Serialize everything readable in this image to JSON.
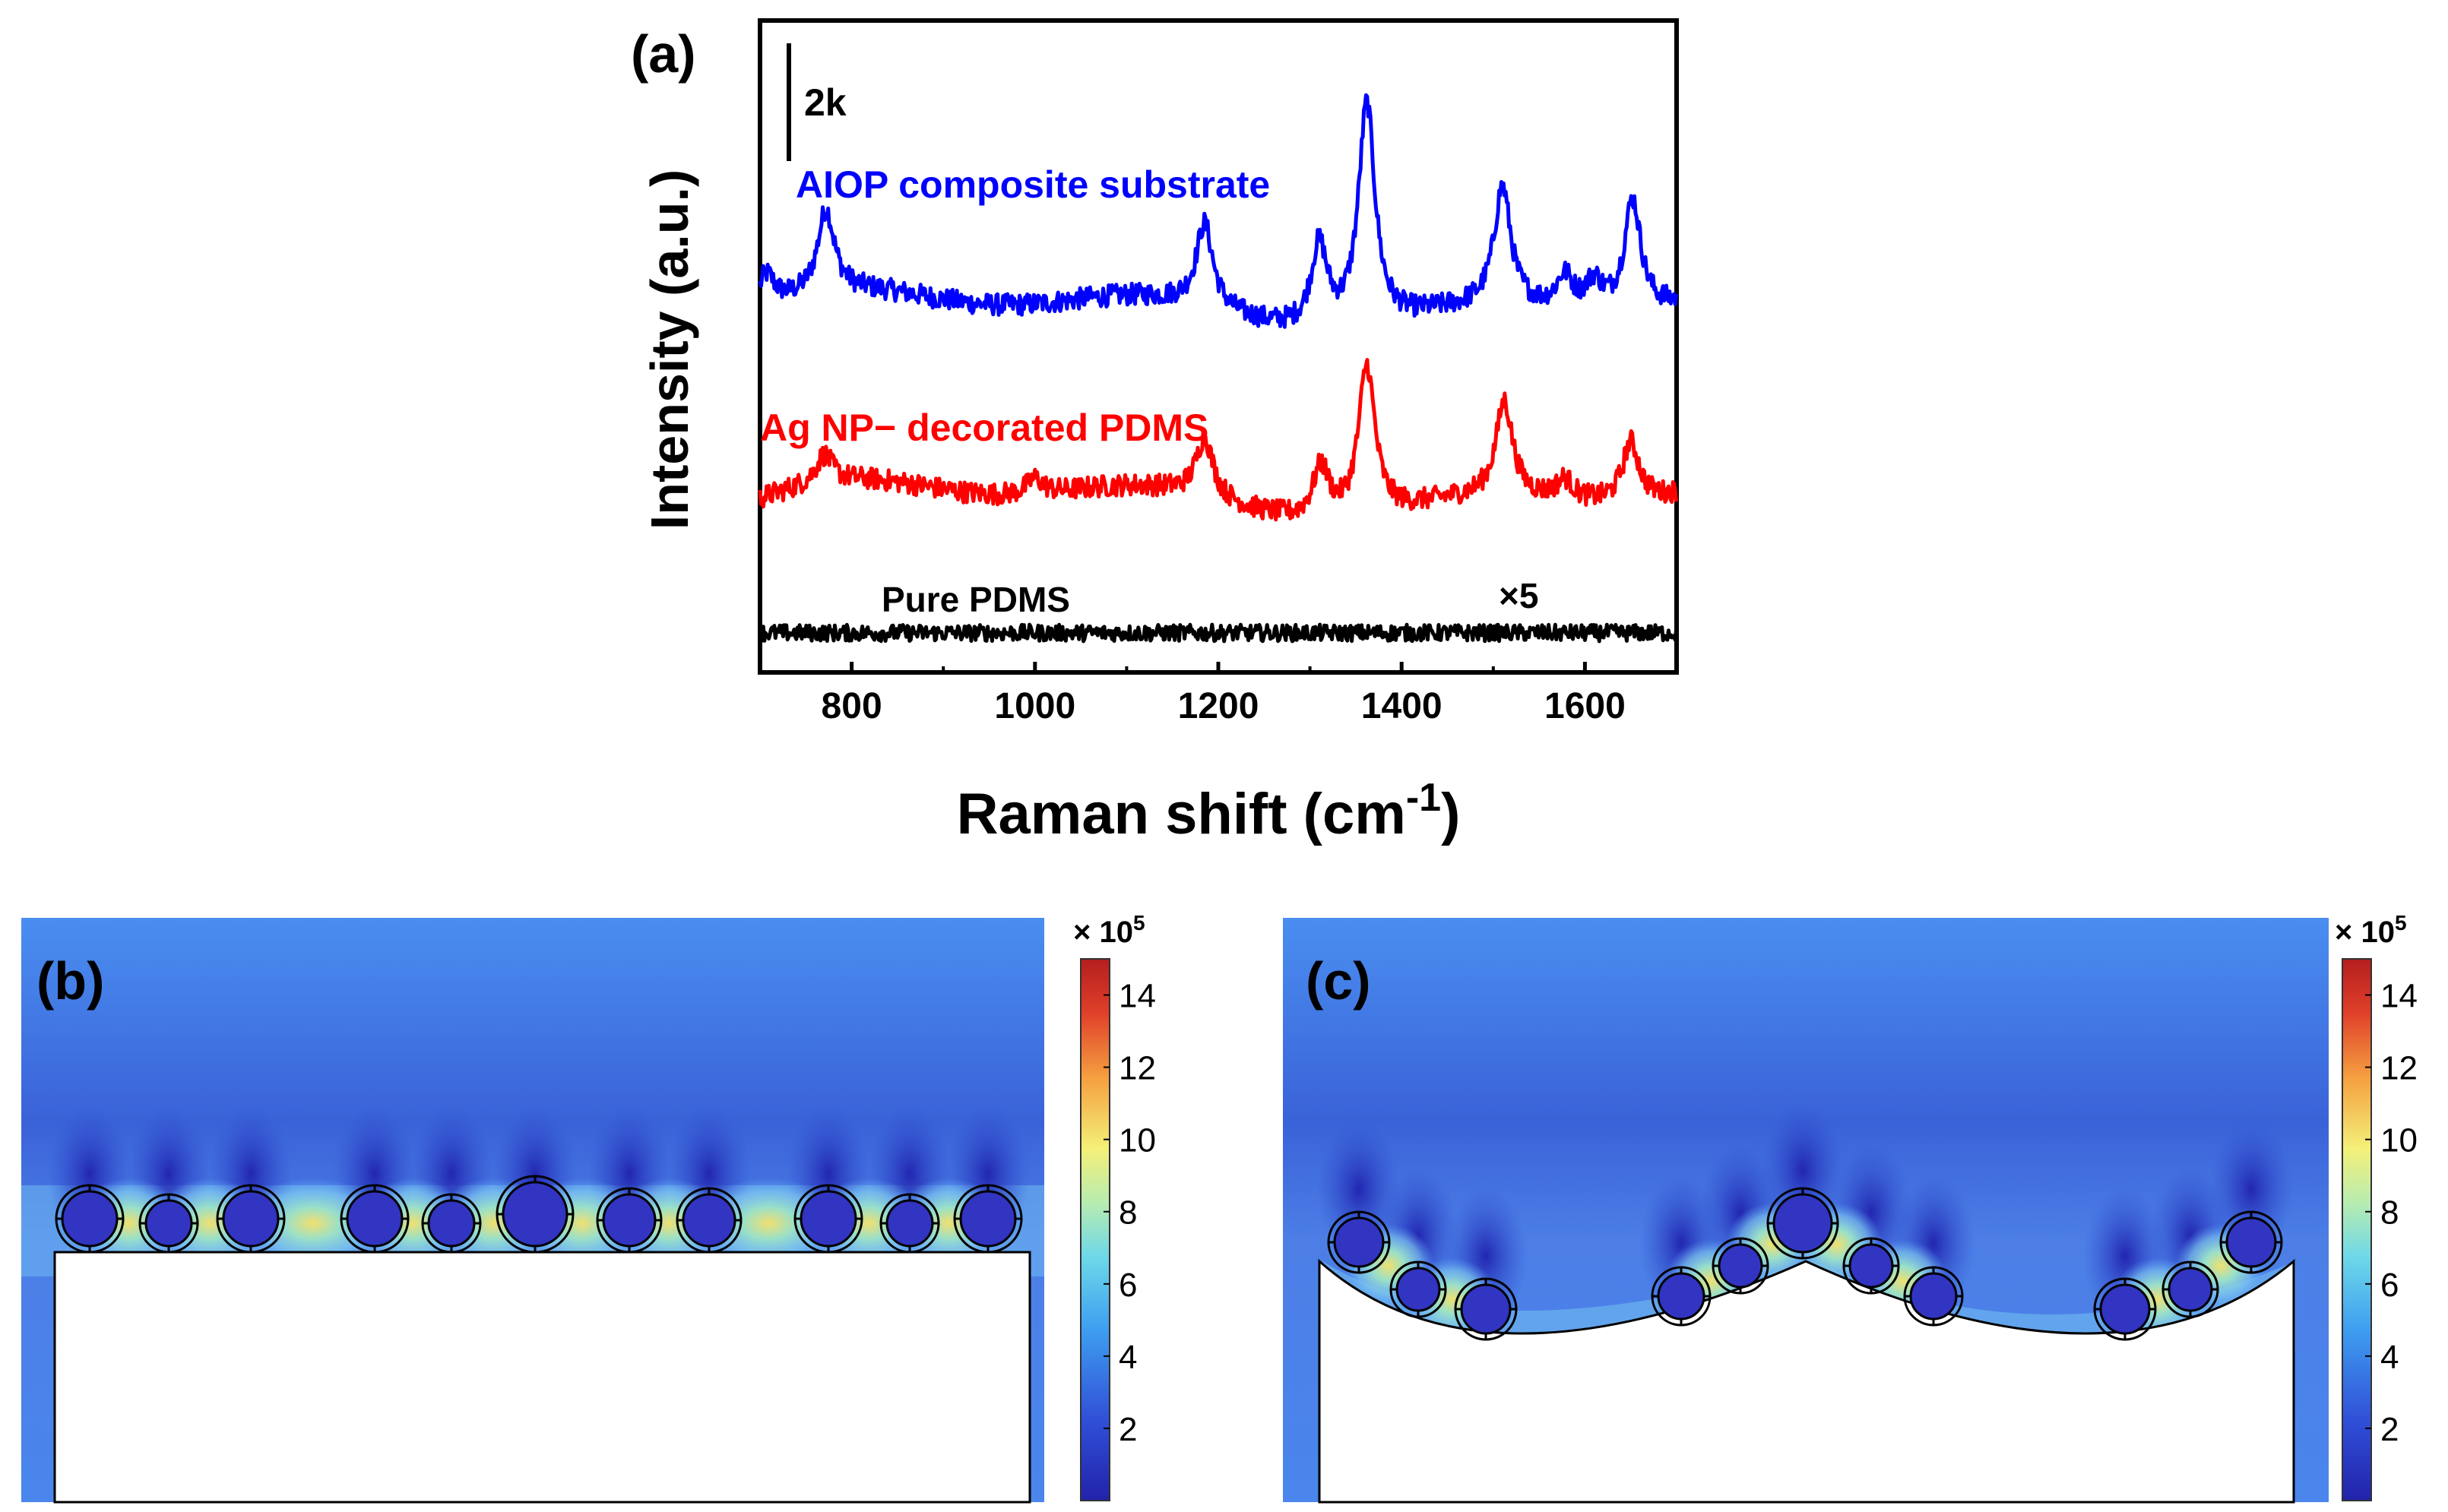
{
  "panel_a": {
    "label": "(a)",
    "scale_bar_label": "2k",
    "multiplier_label": "×5",
    "ylabel": "Intensity (a.u.)",
    "xlabel_main": "Raman shift (cm",
    "xlabel_sup": "-1",
    "xlabel_end": ")"
  },
  "panel_b": {
    "label": "(b)"
  },
  "panel_c": {
    "label": "(c)"
  },
  "colorbar": {
    "exponent_prefix": "× 10",
    "exponent_power": "5",
    "ticks": [
      "2",
      "4",
      "6",
      "8",
      "10",
      "12",
      "14"
    ]
  },
  "colors": {
    "blue": "#0000ff",
    "red": "#ff0000",
    "black": "#000000",
    "field_dark": "#2a2fc0",
    "field_mid": "#3d6fe0",
    "field_light": "#5aa0f5"
  },
  "chart_data": [
    {
      "type": "line",
      "xlabel": "Raman shift (cm-1)",
      "ylabel": "Intensity (a.u.)",
      "xlim": [
        700,
        1700
      ],
      "xticks": [
        800,
        1000,
        1200,
        1400,
        1600
      ],
      "grid": false,
      "series": [
        {
          "name": "AIOP composite substrate",
          "color": "#0000ff",
          "baseline": 9.2,
          "peaks": [
            [
              707,
              0.8
            ],
            [
              772,
              2.1
            ],
            [
              1185,
              2.1
            ],
            [
              1310,
              2.1
            ],
            [
              1362,
              5.6
            ],
            [
              1510,
              3.0
            ],
            [
              1578,
              0.8
            ],
            [
              1610,
              0.7
            ],
            [
              1652,
              2.8
            ]
          ]
        },
        {
          "name": "Ag NP− decorated PDMS",
          "color": "#ff0000",
          "baseline": 4.4,
          "peaks": [
            [
              770,
              0.7
            ],
            [
              1000,
              0.4
            ],
            [
              1185,
              1.5
            ],
            [
              1312,
              1.3
            ],
            [
              1362,
              3.8
            ],
            [
              1512,
              2.4
            ],
            [
              1578,
              0.5
            ],
            [
              1650,
              1.5
            ]
          ]
        },
        {
          "name": "Pure PDMS",
          "color": "#000000",
          "baseline": 1.0,
          "peaks": []
        }
      ]
    },
    {
      "type": "heatmap",
      "title": "(b)",
      "colorbar_range": [
        0,
        15
      ],
      "colorbar_ticks": [
        2,
        4,
        6,
        8,
        10,
        12,
        14
      ],
      "colorbar_unit": "× 10^5"
    },
    {
      "type": "heatmap",
      "title": "(c)",
      "colorbar_range": [
        0,
        15
      ],
      "colorbar_ticks": [
        2,
        4,
        6,
        8,
        10,
        12,
        14
      ],
      "colorbar_unit": "× 10^5"
    }
  ]
}
